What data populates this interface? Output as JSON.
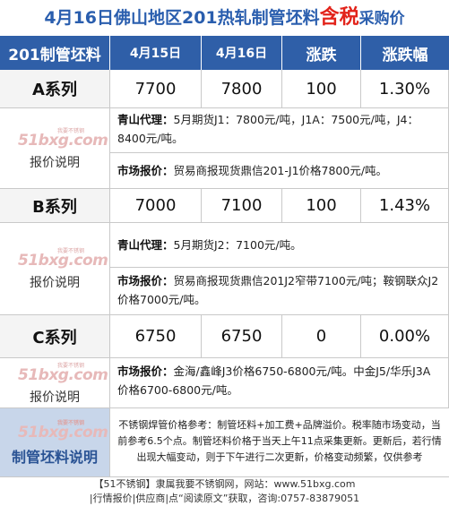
{
  "title": {
    "prefix": "4月16日佛山地区201热轧制管坯料",
    "highlight": "含税",
    "suffix": "采购价"
  },
  "header": {
    "col_product": "201制管坯料",
    "col_date1": "4月15日",
    "col_date2": "4月16日",
    "col_change": "涨跌",
    "col_change_pct": "涨跌幅"
  },
  "watermark": {
    "logo": "51bxg.com",
    "tag": "我要不锈钢"
  },
  "rows": [
    {
      "series": "A系列",
      "price_prev": "7700",
      "price_curr": "7800",
      "change": "100",
      "change_pct": "1.30%",
      "note_label": "报价说明",
      "note1_key": "青山代理：",
      "note1_val": "5月期货J1：7800元/吨，J1A：7500元/吨，J4：8400元/吨。",
      "note2_key": "市场报价：",
      "note2_val": "贸易商报现货鼎信201-J1价格7800元/吨。"
    },
    {
      "series": "B系列",
      "price_prev": "7000",
      "price_curr": "7100",
      "change": "100",
      "change_pct": "1.43%",
      "note_label": "报价说明",
      "note1_key": "青山代理：",
      "note1_val": "5月期货J2：7100元/吨。",
      "note2_key": "市场报价：",
      "note2_val": "贸易商报现货鼎信201J2窄带7100元/吨；鞍钢联众J2价格7000元/吨。"
    },
    {
      "series": "C系列",
      "price_prev": "6750",
      "price_curr": "6750",
      "change": "0",
      "change_pct": "0.00%",
      "note_label": "报价说明",
      "note1_key": "市场报价：",
      "note1_val": "金海/鑫峰J3价格6750-6800元/吨。中金J5/华乐J3A价格6700-6800元/吨。"
    }
  ],
  "description": {
    "label": "制管坯料说明",
    "text": "不锈钢焊管价格参考：制管坯料+加工费+品牌溢价。税率随市场变动，当前参考6.5个点。制管坯料价格于当天上午11点采集更新。更新后，若行情出现大幅变动，则于下午进行二次更新，价格变动频繁，仅供参考"
  },
  "footer": {
    "line1": "【51不锈钢】隶属我要不锈钢网，网站：www.51bxg.com",
    "line2": "|行情报价|供应商|点“阅读原文”获取，咨询:0757-83879051"
  }
}
